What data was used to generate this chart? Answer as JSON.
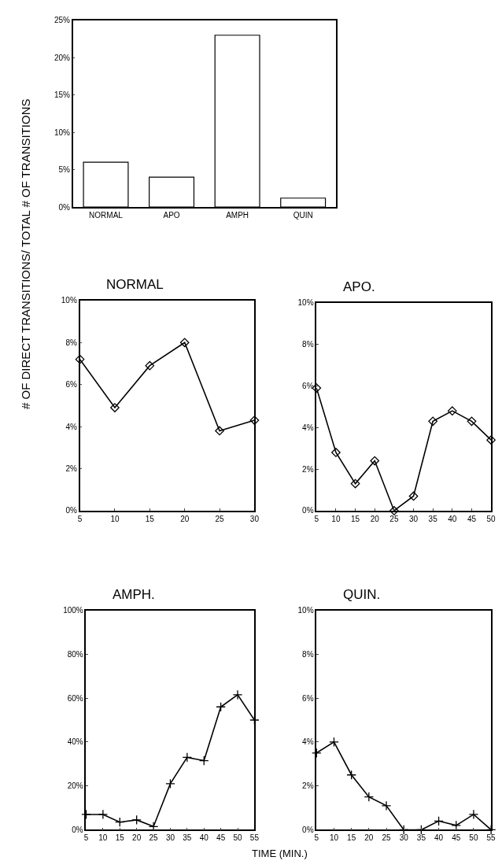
{
  "chart_data": [
    {
      "type": "bar",
      "ylabel": "# OF DIRECT TRANSITIONS/ TOTAL # OF TRANSITIONS",
      "categories": [
        "NORMAL",
        "APO",
        "AMPH",
        "QUIN"
      ],
      "values": [
        6,
        4,
        23,
        1.2
      ],
      "color": "#ffffff",
      "ylim": [
        0,
        25
      ],
      "yticks": [
        {
          "value": 0,
          "label": "0%"
        },
        {
          "value": 5,
          "label": "5%"
        },
        {
          "value": 10,
          "label": "10%"
        },
        {
          "value": 15,
          "label": "15%"
        },
        {
          "value": 20,
          "label": "20%"
        },
        {
          "value": 25,
          "label": "25%"
        }
      ]
    },
    {
      "type": "line",
      "title": "NORMAL",
      "x": [
        5,
        10,
        15,
        20,
        25,
        30
      ],
      "series": [
        {
          "color": "#000000",
          "values": [
            7.2,
            4.9,
            6.9,
            8.0,
            3.8,
            4.3
          ]
        }
      ],
      "marker": "diamond",
      "line_style": "solid",
      "xlim": [
        5,
        30
      ],
      "xticks": [
        5,
        10,
        15,
        20,
        25,
        30
      ],
      "ylim": [
        0,
        10
      ],
      "yticks": [
        {
          "value": 0,
          "label": "0%"
        },
        {
          "value": 2,
          "label": "2%"
        },
        {
          "value": 4,
          "label": "4%"
        },
        {
          "value": 6,
          "label": "6%"
        },
        {
          "value": 8,
          "label": "8%"
        },
        {
          "value": 10,
          "label": "10%"
        }
      ]
    },
    {
      "type": "line",
      "title": "APO.",
      "x": [
        5,
        10,
        15,
        20,
        25,
        30,
        35,
        40,
        45,
        50
      ],
      "series": [
        {
          "color": "#000000",
          "values": [
            5.9,
            2.8,
            1.3,
            2.4,
            0,
            0.7,
            4.3,
            4.8,
            4.3,
            3.4
          ]
        }
      ],
      "marker": "diamond",
      "line_style": "solid",
      "xlim": [
        5,
        50
      ],
      "xticks": [
        5,
        10,
        15,
        20,
        25,
        30,
        35,
        40,
        45,
        50
      ],
      "ylim": [
        0,
        10
      ],
      "yticks": [
        {
          "value": 0,
          "label": "0%"
        },
        {
          "value": 2,
          "label": "2%"
        },
        {
          "value": 4,
          "label": "4%"
        },
        {
          "value": 6,
          "label": "6%"
        },
        {
          "value": 8,
          "label": "8%"
        },
        {
          "value": 10,
          "label": "10%"
        }
      ]
    },
    {
      "type": "line",
      "title": "AMPH.",
      "xlabel": "TIME (MIN.)",
      "x": [
        5,
        10,
        15,
        20,
        25,
        30,
        35,
        40,
        45,
        50,
        55
      ],
      "series": [
        {
          "color": "#000000",
          "values": [
            7,
            7,
            3.5,
            4.5,
            1.5,
            21,
            33,
            31.5,
            56,
            61.5,
            50
          ]
        }
      ],
      "marker": "cross",
      "line_style": "solid",
      "xlim": [
        5,
        55
      ],
      "xticks": [
        5,
        10,
        15,
        20,
        25,
        30,
        35,
        40,
        45,
        50,
        55
      ],
      "ylim": [
        0,
        100
      ],
      "yticks": [
        {
          "value": 0,
          "label": "0%"
        },
        {
          "value": 20,
          "label": "20%"
        },
        {
          "value": 40,
          "label": "40%"
        },
        {
          "value": 60,
          "label": "60%"
        },
        {
          "value": 80,
          "label": "80%"
        },
        {
          "value": 100,
          "label": "100%"
        }
      ]
    },
    {
      "type": "line",
      "title": "QUIN.",
      "x": [
        5,
        10,
        15,
        20,
        25,
        30,
        35,
        40,
        45,
        50,
        55
      ],
      "series": [
        {
          "color": "#000000",
          "values": [
            3.5,
            4.0,
            2.5,
            1.5,
            1.1,
            0,
            0,
            0.4,
            0.2,
            0.7,
            0
          ]
        }
      ],
      "marker": "cross",
      "line_style": "solid",
      "xlim": [
        5,
        55
      ],
      "xticks": [
        5,
        10,
        15,
        20,
        25,
        30,
        35,
        40,
        45,
        50,
        55
      ],
      "ylim": [
        0,
        10
      ],
      "yticks": [
        {
          "value": 0,
          "label": "0%"
        },
        {
          "value": 2,
          "label": "2%"
        },
        {
          "value": 4,
          "label": "4%"
        },
        {
          "value": 6,
          "label": "6%"
        },
        {
          "value": 8,
          "label": "8%"
        },
        {
          "value": 10,
          "label": "10%"
        }
      ]
    }
  ]
}
